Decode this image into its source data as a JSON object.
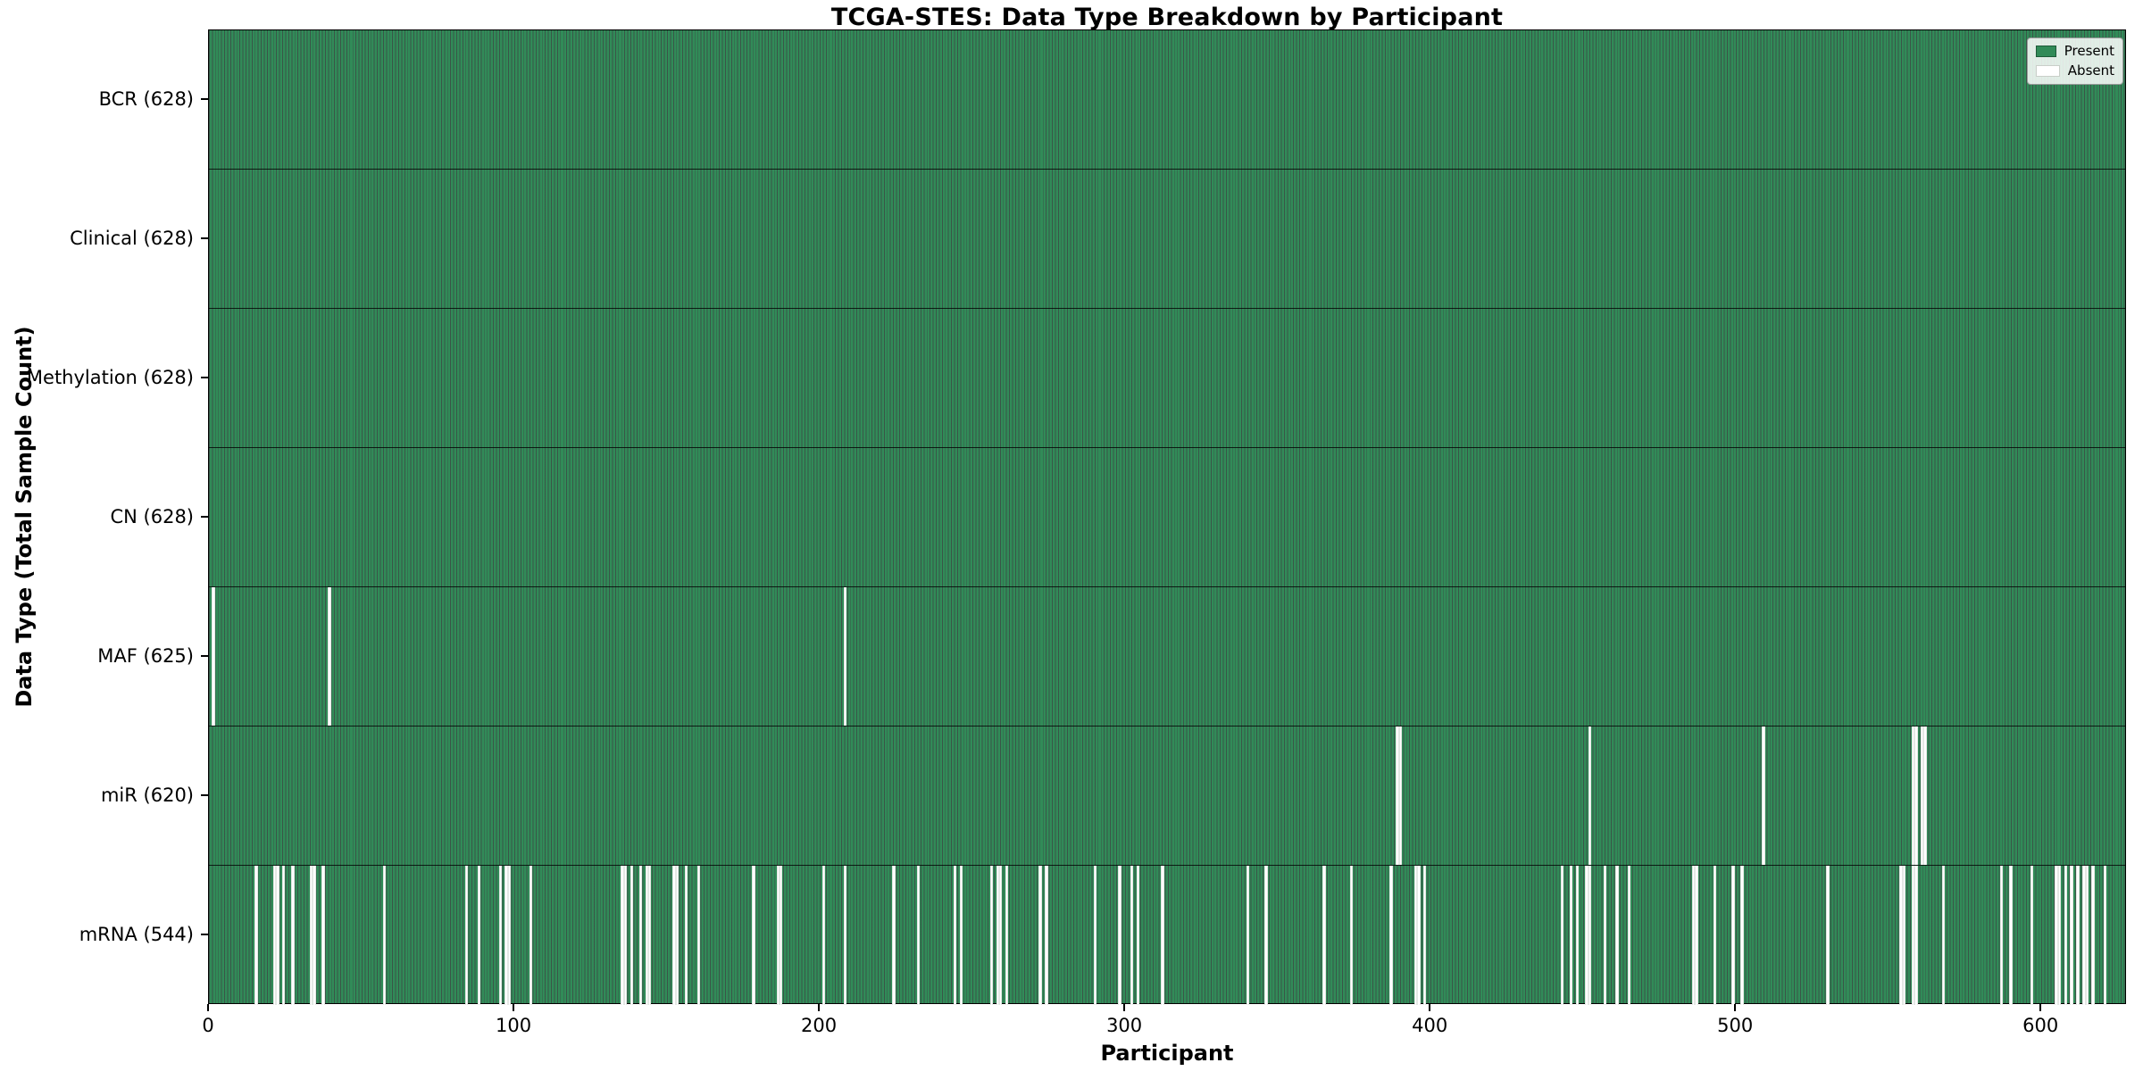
{
  "title": "TCGA-STES: Data Type Breakdown by Participant",
  "axes": {
    "x_label": "Participant",
    "y_label": "Data Type (Total Sample Count)"
  },
  "legend": {
    "position": "upper-right",
    "items": [
      {
        "label": "Present",
        "color": "#318b58"
      },
      {
        "label": "Absent",
        "color": "#ffffff"
      }
    ]
  },
  "colors": {
    "present_fill": "#318b58",
    "bar_edge": "#0b2b1a",
    "absent_fill": "#ffffff",
    "axis": "#000000",
    "background": "#ffffff"
  },
  "chart_data": {
    "type": "heatmap",
    "title": "TCGA-STES: Data Type Breakdown by Participant",
    "xlabel": "Participant",
    "ylabel": "Data Type (Total Sample Count)",
    "x_range": [
      0,
      628
    ],
    "x_ticks": [
      0,
      100,
      200,
      300,
      400,
      500,
      600
    ],
    "n_participants": 628,
    "grid": false,
    "legend_position": "upper right",
    "encoding": "green bar = data present for participant; white gap = absent",
    "rows": [
      {
        "data_type": "BCR",
        "label": "BCR (628)",
        "total": 628,
        "missing_participants": []
      },
      {
        "data_type": "Clinical",
        "label": "Clinical (628)",
        "total": 628,
        "missing_participants": []
      },
      {
        "data_type": "Methylation",
        "label": "Methylation (628)",
        "total": 628,
        "missing_participants": []
      },
      {
        "data_type": "CN",
        "label": "CN (628)",
        "total": 628,
        "missing_participants": []
      },
      {
        "data_type": "MAF",
        "label": "MAF (625)",
        "total": 625,
        "missing_participants": [
          1,
          39,
          208
        ]
      },
      {
        "data_type": "miR",
        "label": "miR (620)",
        "total": 620,
        "missing_participants": [
          389,
          390,
          452,
          509,
          558,
          559,
          561,
          562
        ]
      },
      {
        "data_type": "mRNA",
        "label": "mRNA (544)",
        "total": 544,
        "missing_participants": [
          15,
          21,
          22,
          24,
          27,
          33,
          34,
          37,
          57,
          84,
          88,
          95,
          97,
          98,
          105,
          135,
          136,
          138,
          141,
          143,
          144,
          152,
          153,
          156,
          160,
          178,
          186,
          187,
          201,
          208,
          224,
          232,
          244,
          246,
          256,
          258,
          259,
          261,
          272,
          274,
          290,
          298,
          302,
          304,
          312,
          340,
          346,
          365,
          374,
          387,
          395,
          396,
          398,
          443,
          446,
          448,
          451,
          452,
          457,
          461,
          465,
          486,
          487,
          493,
          499,
          502,
          530,
          554,
          555,
          558,
          559,
          568,
          587,
          590,
          597,
          605,
          606,
          608,
          610,
          612,
          614,
          615,
          617,
          621
        ]
      }
    ]
  }
}
